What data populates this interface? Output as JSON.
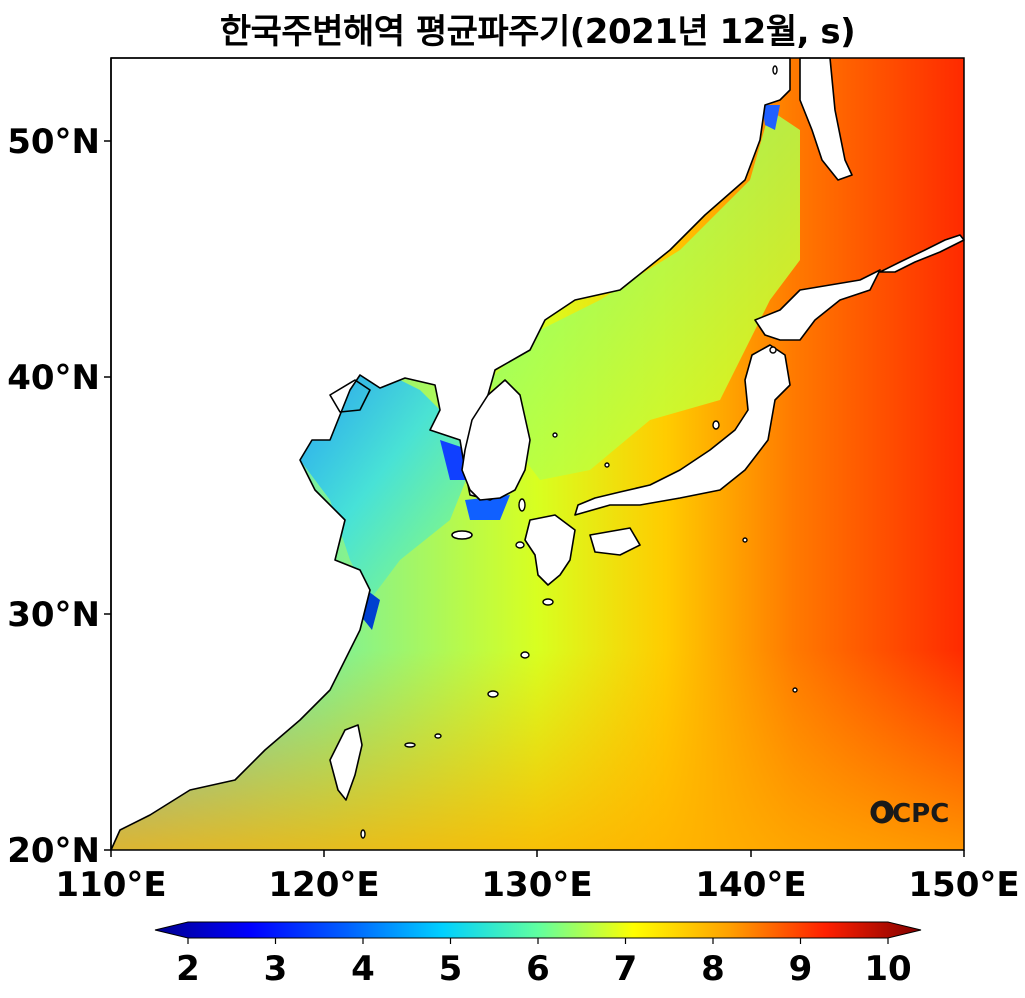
{
  "title": "한국주변해역 평균파주기(2021년 12월, s)",
  "map": {
    "lon_range": [
      110,
      150
    ],
    "lat_range": [
      20,
      53.5
    ],
    "lon_ticks": [
      "110°E",
      "120°E",
      "130°E",
      "140°E",
      "150°E"
    ],
    "lat_ticks": [
      "20°N",
      "30°N",
      "40°N",
      "50°N"
    ],
    "variable": "mean wave period (s)",
    "month": "2021-12"
  },
  "colorbar": {
    "min": 2,
    "max": 10,
    "ticks": [
      "2",
      "3",
      "4",
      "5",
      "6",
      "7",
      "8",
      "9",
      "10"
    ],
    "colormap": "jet",
    "colors": [
      "#00008f",
      "#0000ff",
      "#0080ff",
      "#00ffff",
      "#80ff80",
      "#ffff00",
      "#ff8000",
      "#ff0000",
      "#800000"
    ]
  },
  "logo": "OCPC"
}
